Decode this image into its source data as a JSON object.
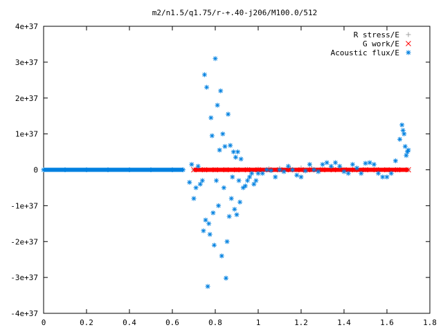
{
  "chart_data": {
    "type": "scatter",
    "title": "m2/n1.5/q1.75/r-+.40-j206/M100.0/512",
    "xlabel": "",
    "ylabel": "",
    "xlim": [
      0,
      1.8
    ],
    "ylim": [
      -4e+37,
      4e+37
    ],
    "x_ticks": [
      0,
      0.2,
      0.4,
      0.6,
      0.8,
      1,
      1.2,
      1.4,
      1.6,
      1.8
    ],
    "x_tick_labels": [
      "0",
      "0.2",
      "0.4",
      "0.6",
      "0.8",
      "1",
      "1.2",
      "1.4",
      "1.6",
      "1.8"
    ],
    "y_ticks": [
      -4e+37,
      -3e+37,
      -2e+37,
      -1e+37,
      0,
      1e+37,
      2e+37,
      3e+37,
      4e+37
    ],
    "y_tick_labels": [
      "-4e+37",
      "-3e+37",
      "-2e+37",
      "-1e+37",
      "0",
      "1e+37",
      "2e+37",
      "3e+37",
      "4e+37"
    ],
    "grid": false,
    "legend_position": "top-right",
    "series": [
      {
        "name": "R stress/E",
        "marker": "plus",
        "color": "#a0a0a0",
        "x": [
          0.7,
          0.75,
          0.8,
          0.85,
          0.9,
          0.95,
          1.0,
          1.05,
          1.1,
          1.15,
          1.2,
          1.25,
          1.3,
          1.35,
          1.4,
          1.45,
          1.5,
          1.55,
          1.6,
          1.65,
          1.7
        ],
        "y": [
          0,
          0,
          0,
          0,
          0,
          1e+35,
          2e+35,
          3e+35,
          4e+35,
          5e+35,
          5e+35,
          4e+35,
          3e+35,
          2e+35,
          1e+35,
          0,
          0,
          0,
          0,
          0,
          0
        ]
      },
      {
        "name": "G work/E",
        "marker": "cross",
        "color": "#ff0000",
        "x": [
          0.7,
          0.75,
          0.8,
          0.85,
          0.9,
          0.95,
          1.0,
          1.05,
          1.1,
          1.15,
          1.2,
          1.25,
          1.3,
          1.35,
          1.4,
          1.45,
          1.5,
          1.55,
          1.6,
          1.65,
          1.7
        ],
        "y": [
          0,
          0,
          0,
          0,
          0,
          0,
          0,
          0,
          0,
          0,
          0,
          0,
          0,
          0,
          0,
          0,
          0,
          0,
          0,
          0,
          0
        ]
      },
      {
        "name": "Acoustic flux/E",
        "marker": "star",
        "color": "#0080e0",
        "x": [
          0,
          0.1,
          0.2,
          0.3,
          0.4,
          0.5,
          0.6,
          0.65,
          0.68,
          0.69,
          0.7,
          0.71,
          0.72,
          0.73,
          0.74,
          0.745,
          0.75,
          0.755,
          0.76,
          0.765,
          0.77,
          0.775,
          0.78,
          0.785,
          0.79,
          0.795,
          0.8,
          0.805,
          0.81,
          0.815,
          0.82,
          0.825,
          0.83,
          0.835,
          0.84,
          0.845,
          0.85,
          0.855,
          0.86,
          0.865,
          0.87,
          0.875,
          0.88,
          0.885,
          0.89,
          0.895,
          0.9,
          0.905,
          0.91,
          0.915,
          0.92,
          0.93,
          0.94,
          0.95,
          0.96,
          0.97,
          0.98,
          0.99,
          1.0,
          1.02,
          1.04,
          1.06,
          1.08,
          1.1,
          1.12,
          1.14,
          1.16,
          1.18,
          1.2,
          1.22,
          1.24,
          1.26,
          1.28,
          1.3,
          1.32,
          1.34,
          1.36,
          1.38,
          1.4,
          1.42,
          1.44,
          1.46,
          1.48,
          1.5,
          1.52,
          1.54,
          1.56,
          1.58,
          1.6,
          1.62,
          1.64,
          1.66,
          1.67,
          1.675,
          1.68,
          1.685,
          1.69,
          1.695,
          1.7
        ],
        "y": [
          0,
          0,
          0,
          0,
          0,
          0,
          0,
          0,
          -3.5e+36,
          1.5e+36,
          -8e+36,
          -5e+36,
          1e+36,
          -4e+36,
          -3e+36,
          -1.7e+37,
          2.65e+37,
          -1.4e+37,
          2.3e+37,
          -3.25e+37,
          -1.5e+37,
          -1.8e+37,
          1.45e+37,
          9.5e+36,
          -1.2e+37,
          -2.1e+37,
          3.1e+37,
          -3e+36,
          1.8e+37,
          -1e+37,
          5.5e+36,
          2.2e+37,
          -2.4e+37,
          1e+37,
          -5e+36,
          6.5e+36,
          -3.02e+37,
          -2e+37,
          1.55e+37,
          -1.3e+37,
          6.8e+36,
          -8e+36,
          -2e+36,
          5e+36,
          -1.1e+37,
          3.5e+36,
          -1.25e+37,
          5e+36,
          -3e+36,
          -9e+36,
          3e+36,
          -5e+36,
          -4.5e+36,
          -3e+36,
          -2e+36,
          -1e+36,
          -4e+36,
          -3e+36,
          -1e+36,
          -1e+36,
          0,
          -2e+35,
          -2e+36,
          0,
          -5e+35,
          1e+36,
          0,
          -1.5e+36,
          -2e+36,
          -3e+35,
          1.5e+36,
          0,
          -5e+35,
          1.5e+36,
          2e+36,
          1e+36,
          2e+36,
          1e+36,
          -5e+35,
          -1e+36,
          1.5e+36,
          5e+35,
          -1e+36,
          1.8e+36,
          2e+36,
          1.5e+36,
          -1e+36,
          -2e+36,
          -2e+36,
          -1e+36,
          2.5e+36,
          8.5e+36,
          1.25e+37,
          1.1e+37,
          1e+37,
          6.5e+36,
          4e+36,
          5e+36,
          5.5e+36
        ]
      }
    ]
  }
}
